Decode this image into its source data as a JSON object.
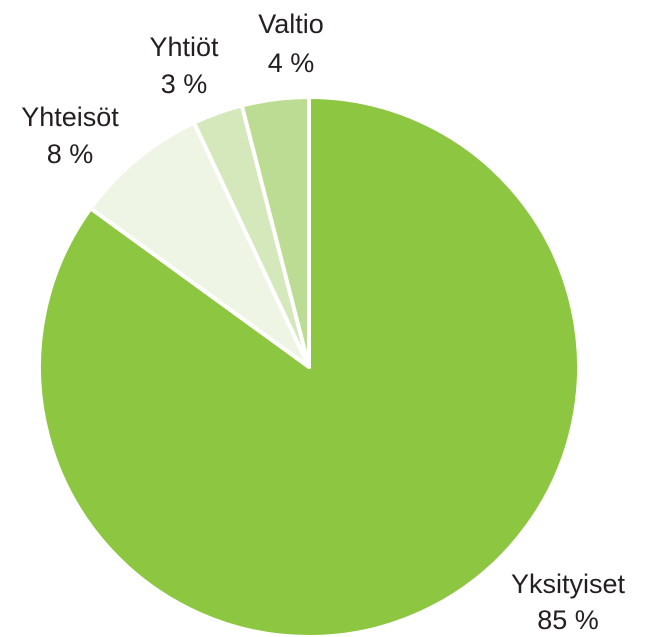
{
  "chart_data": {
    "type": "pie",
    "title": "",
    "slices": [
      {
        "label": "Yksityiset",
        "value": 85,
        "value_label": "85 %",
        "color": "#8dc641"
      },
      {
        "label": "Yhteisöt",
        "value": 8,
        "value_label": "8 %",
        "color": "#eef5e5"
      },
      {
        "label": "Yhtiöt",
        "value": 3,
        "value_label": "3 %",
        "color": "#d4e8bc"
      },
      {
        "label": "Valtio",
        "value": 4,
        "value_label": "4 %",
        "color": "#bcdc93"
      }
    ],
    "start": "12 o'clock",
    "direction": "clockwise",
    "slice_border_color": "#ffffff",
    "labels_outside": true
  }
}
